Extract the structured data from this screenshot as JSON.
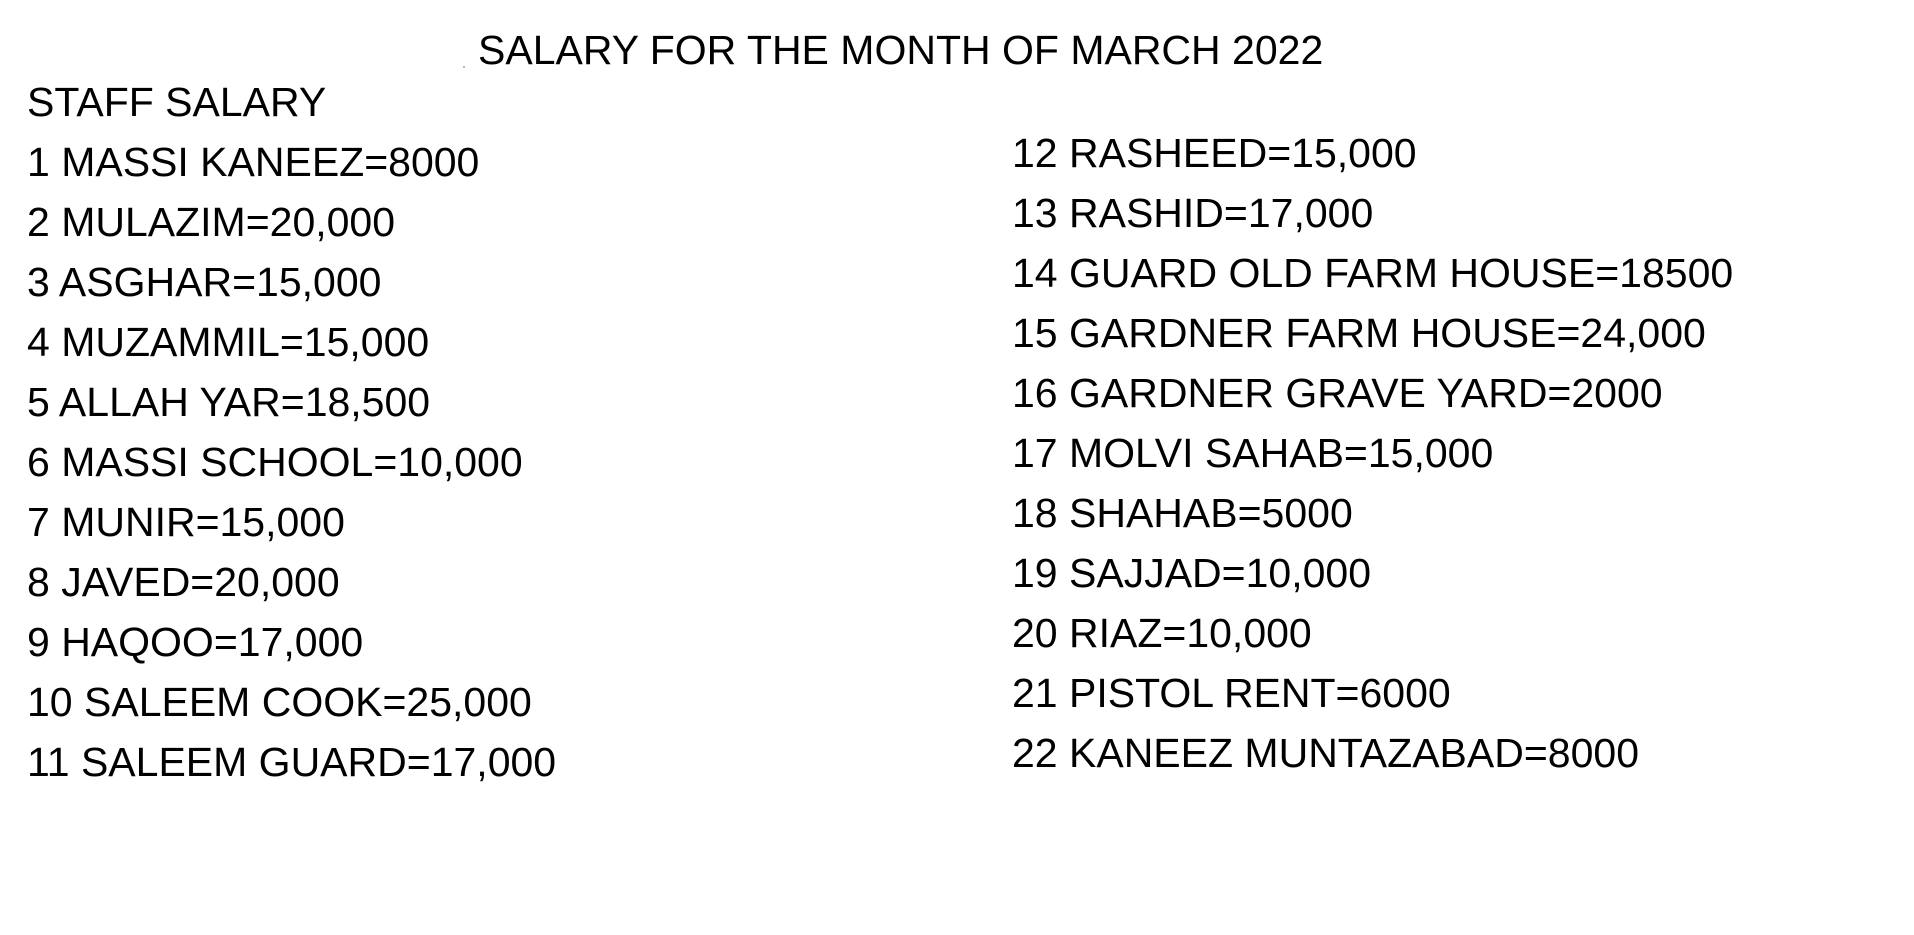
{
  "document": {
    "title": "SALARY FOR THE MONTH OF MARCH 2022",
    "section_heading": "STAFF SALARY",
    "left_column": [
      "1 MASSI KANEEZ=8000",
      "2 MULAZIM=20,000",
      "3 ASGHAR=15,000",
      "4 MUZAMMIL=15,000",
      "5 ALLAH YAR=18,500",
      "6 MASSI SCHOOL=10,000",
      "7 MUNIR=15,000",
      "8 JAVED=20,000",
      "9 HAQOO=17,000",
      "10 SALEEM COOK=25,000",
      "11 SALEEM GUARD=17,000"
    ],
    "right_column": [
      "12 RASHEED=15,000",
      "13 RASHID=17,000",
      "14 GUARD OLD FARM HOUSE=18500",
      "15 GARDNER FARM HOUSE=24,000",
      "16 GARDNER GRAVE YARD=2000",
      "17 MOLVI SAHAB=15,000",
      "18 SHAHAB=5000",
      "19 SAJJAD=10,000",
      "20 RIAZ=10,000",
      "21 PISTOL RENT=6000",
      "22 KANEEZ MUNTAZABAD=8000"
    ]
  }
}
